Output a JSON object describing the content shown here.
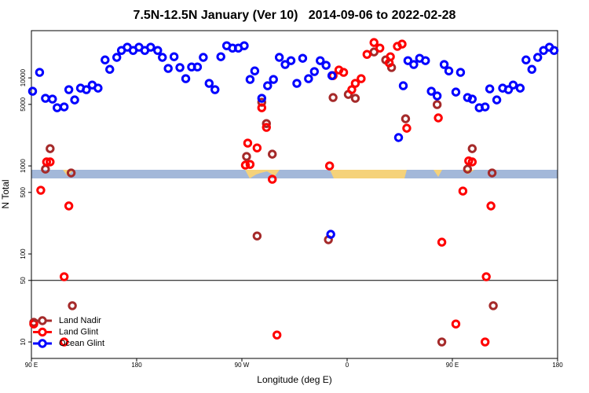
{
  "chart_data": {
    "type": "scatter",
    "title": "7.5N-12.5N January (Ver 10)   2014-09-06 to 2022-02-28",
    "x_label": "Longitude (deg E)",
    "y_label": "N Total",
    "log_y": true,
    "legend": "bottom-left",
    "reference_line": 50,
    "xlim": [
      90,
      540
    ],
    "xticks": [
      {
        "value": 90,
        "label": "90 E"
      },
      180,
      {
        "value": 270,
        "label": "90 W"
      },
      {
        "value": 360,
        "label": "0"
      },
      {
        "value": 450,
        "label": "90 E"
      },
      {
        "value": 540,
        "label": "180"
      }
    ],
    "ylim": [
      6.5,
      34400
    ],
    "yticks": [
      10,
      50,
      100,
      500,
      1000,
      5000,
      10000
    ],
    "series": [
      {
        "name": "Land Nadir",
        "color": "#a52a2a",
        "x": [
          92,
          102,
          106,
          124,
          125,
          274,
          283,
          287,
          291,
          296,
          344,
          348,
          361,
          367,
          383,
          393,
          398,
          410,
          437,
          441,
          463,
          467,
          484,
          485
        ],
        "values": [
          16.7,
          920,
          1570,
          832,
          25.8,
          1280,
          160,
          5290,
          3030,
          1360,
          145,
          5980,
          6490,
          5860,
          19700,
          16000,
          13100,
          3430,
          4970,
          10,
          920,
          1570,
          832,
          25.8
        ]
      },
      {
        "name": "Land Glint",
        "color": "#ff0000",
        "x": [
          92,
          98,
          103,
          106,
          122,
          118,
          118,
          275,
          283,
          273,
          277,
          287,
          291,
          296,
          300,
          345,
          348,
          353,
          357,
          364,
          367,
          372,
          377,
          383,
          388,
          396,
          397,
          403,
          407,
          411,
          438,
          441,
          459,
          453,
          464,
          467,
          479,
          483,
          478
        ],
        "values": [
          16.0,
          529,
          1110,
          1110,
          351,
          55.1,
          10,
          1815,
          1600,
          1020,
          1040,
          4580,
          2740,
          705,
          12.0,
          1000,
          10600,
          12300,
          11550,
          7350,
          8660,
          9800,
          18500,
          25200,
          21800,
          14800,
          17400,
          22800,
          24200,
          2680,
          3510,
          136,
          518,
          16.0,
          1140,
          1110,
          55.1,
          351,
          10
        ]
      },
      {
        "name": "Ocean Glint",
        "color": "#0000ff",
        "x": [
          91,
          97,
          102,
          108,
          112,
          118,
          122,
          127,
          132,
          137,
          142,
          147,
          153,
          157,
          163,
          167,
          172,
          177,
          182,
          187,
          192,
          198,
          202,
          207,
          212,
          217,
          222,
          227,
          232,
          237,
          242,
          247,
          252,
          257,
          262,
          267,
          272,
          277,
          281,
          287,
          292,
          297,
          302,
          307,
          312,
          317,
          322,
          327,
          332,
          337,
          342,
          347,
          346,
          404,
          408,
          412,
          417,
          422,
          427,
          432,
          437,
          443,
          447,
          453,
          457,
          463,
          467,
          473,
          478,
          482,
          488,
          493,
          498,
          502,
          508,
          513,
          518,
          523,
          528,
          533,
          537
        ],
        "values": [
          7050,
          11550,
          5860,
          5740,
          4580,
          4680,
          7350,
          5620,
          7650,
          7350,
          8300,
          7650,
          16000,
          12500,
          17100,
          20500,
          22300,
          20500,
          22300,
          20500,
          22300,
          20500,
          17100,
          12800,
          17400,
          13100,
          9800,
          13300,
          13300,
          17100,
          8660,
          7350,
          17400,
          23200,
          21800,
          21800,
          23200,
          9600,
          12000,
          5860,
          8140,
          9600,
          17100,
          14200,
          15700,
          8660,
          16700,
          9800,
          11800,
          15700,
          13900,
          10600,
          167,
          2100,
          8140,
          15700,
          14200,
          16700,
          15700,
          7050,
          6240,
          14200,
          12000,
          6900,
          11550,
          5980,
          5740,
          4580,
          4680,
          7500,
          5620,
          7650,
          7350,
          8300,
          7650,
          16000,
          12500,
          17100,
          20500,
          22300,
          20500
        ]
      }
    ]
  }
}
